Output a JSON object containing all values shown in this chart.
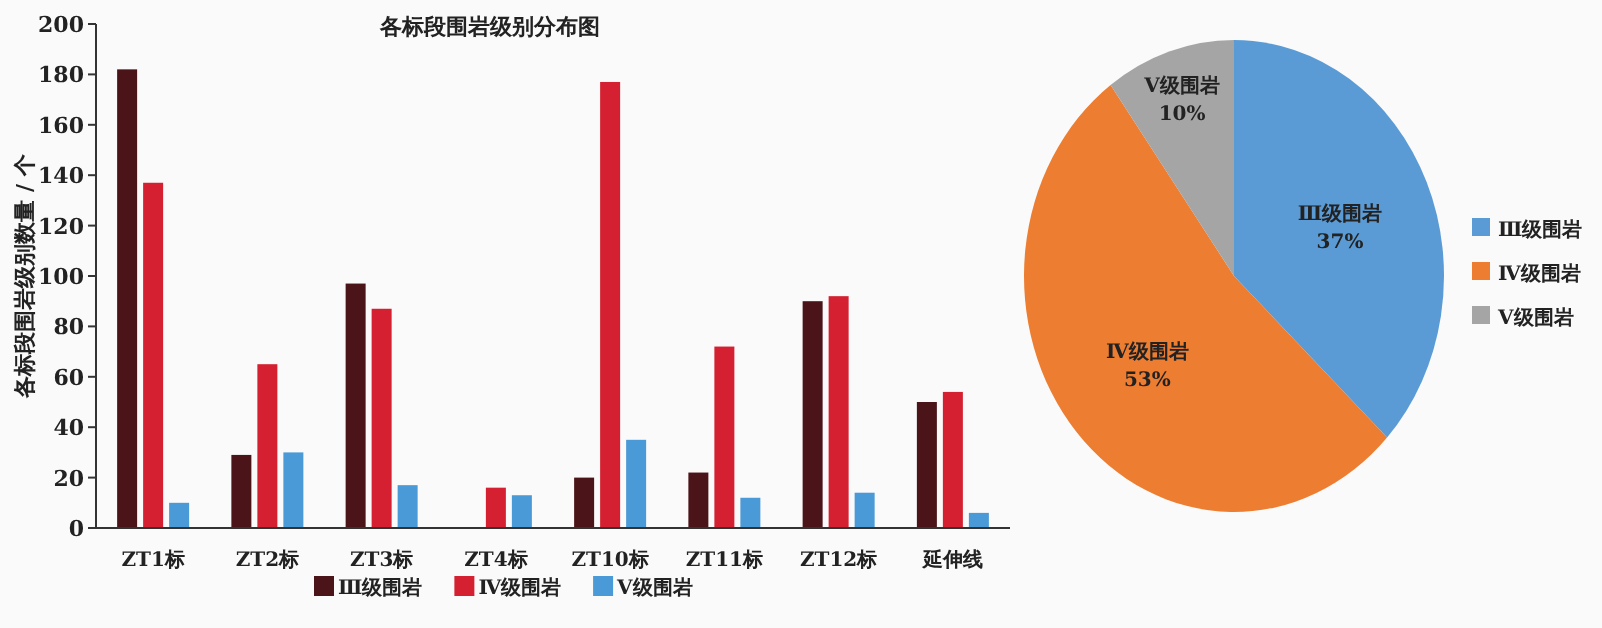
{
  "chart_data": [
    {
      "type": "bar",
      "title": "各标段围岩级别分布图",
      "ylabel": "各标段围岩级别数量 / 个",
      "categories": [
        "ZT1标",
        "ZT2标",
        "ZT3标",
        "ZT4标",
        "ZT10标",
        "ZT11标",
        "ZT12标",
        "延伸线"
      ],
      "series": [
        {
          "name": "Ⅲ级围岩",
          "color": "#4a1418",
          "values": [
            182,
            29,
            97,
            null,
            20,
            22,
            90,
            50
          ]
        },
        {
          "name": "Ⅳ级围岩",
          "color": "#d42030",
          "values": [
            137,
            65,
            87,
            16,
            177,
            72,
            92,
            54
          ]
        },
        {
          "name": "Ⅴ级围岩",
          "color": "#4a9ad8",
          "values": [
            10,
            30,
            17,
            13,
            35,
            12,
            14,
            6
          ]
        }
      ],
      "ylim": [
        0,
        200
      ],
      "yticks": [
        0,
        20,
        40,
        60,
        80,
        100,
        120,
        140,
        160,
        180,
        200
      ],
      "grid": false,
      "legend": "bottom"
    },
    {
      "type": "pie",
      "categories": [
        "Ⅲ级围岩",
        "Ⅳ级围岩",
        "Ⅴ级围岩"
      ],
      "values": [
        37,
        53,
        10
      ],
      "colors": [
        "#5b9bd5",
        "#ed7d31",
        "#a5a5a5"
      ],
      "value_labels": [
        "37%",
        "53%",
        "10%"
      ],
      "legend": "right"
    }
  ]
}
